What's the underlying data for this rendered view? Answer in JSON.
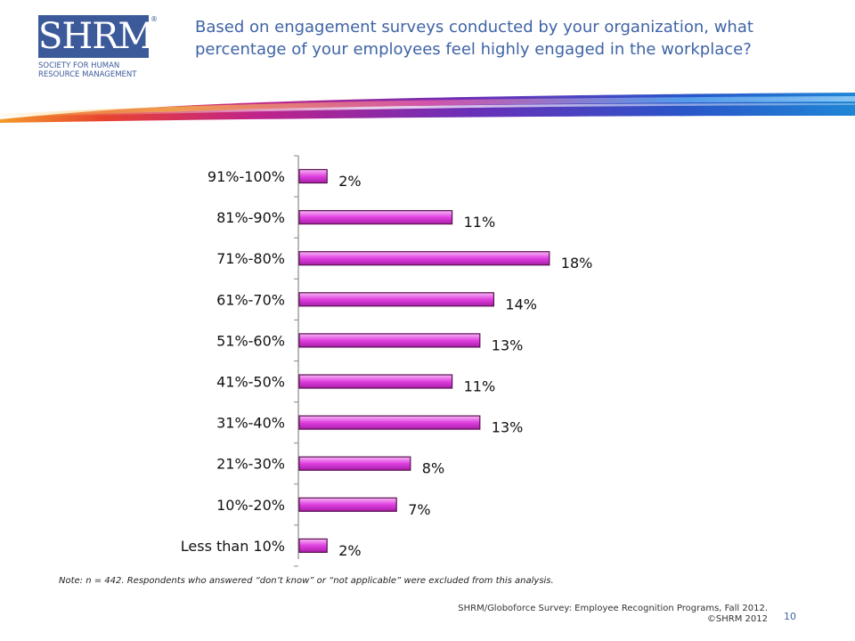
{
  "header": {
    "logo_mark": "SHRM",
    "logo_registered": "®",
    "logo_subtitle": "SOCIETY FOR HUMAN\nRESOURCE MANAGEMENT",
    "title": "Based on engagement surveys conducted by your organization, what percentage of your employees feel highly engaged in the workplace?"
  },
  "colors": {
    "brand_blue": "#3c5a9a",
    "title_blue": "#3f64a6",
    "bar_fill": "#e040e0",
    "bar_light": "#f6b8f4",
    "bar_edge": "#5a1050"
  },
  "chart_data": {
    "type": "bar",
    "orientation": "horizontal",
    "categories": [
      "91%-100%",
      "81%-90%",
      "71%-80%",
      "61%-70%",
      "51%-60%",
      "41%-50%",
      "31%-40%",
      "21%-30%",
      "10%-20%",
      "Less than 10%"
    ],
    "values": [
      2,
      11,
      18,
      14,
      13,
      11,
      13,
      8,
      7,
      2
    ],
    "value_labels": [
      "2%",
      "11%",
      "18%",
      "14%",
      "13%",
      "11%",
      "13%",
      "8%",
      "7%",
      "2%"
    ],
    "title": "",
    "xlabel": "",
    "ylabel": "",
    "xlim": [
      0,
      20
    ],
    "grid": false,
    "legend": "none"
  },
  "note": "Note: n = 442. Respondents who answered “don’t know” or “not applicable” were excluded from this analysis.",
  "footer": {
    "source_line1": "SHRM/Globoforce Survey: Employee Recognition Programs, Fall 2012.",
    "source_line2": "©SHRM 2012",
    "page_number": "10"
  }
}
